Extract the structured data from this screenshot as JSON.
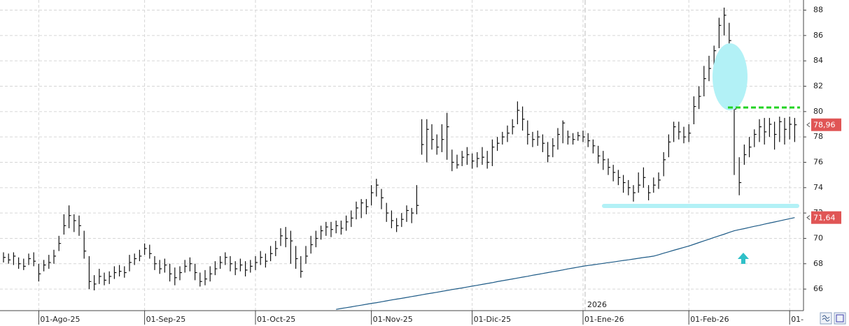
{
  "chart_data": {
    "type": "hlc",
    "ylim": [
      64.3,
      88.8
    ],
    "yticks": [
      66,
      68,
      70,
      72,
      74,
      76,
      78,
      80,
      82,
      84,
      86,
      88
    ],
    "grid": true,
    "color": "#111111",
    "year_marker": "2026",
    "categories": [
      null,
      null,
      null,
      null,
      null,
      null,
      null,
      "01-Ago-25",
      null,
      null,
      null,
      null,
      null,
      null,
      null,
      null,
      null,
      null,
      null,
      null,
      null,
      null,
      null,
      null,
      null,
      null,
      null,
      null,
      "01-Sep-25",
      null,
      null,
      null,
      null,
      null,
      null,
      null,
      null,
      null,
      null,
      null,
      null,
      null,
      null,
      null,
      null,
      null,
      null,
      null,
      null,
      null,
      "01-Oct-25",
      null,
      null,
      null,
      null,
      null,
      null,
      null,
      null,
      null,
      null,
      null,
      null,
      null,
      null,
      null,
      null,
      null,
      null,
      null,
      null,
      null,
      null,
      "01-Nov-25",
      null,
      null,
      null,
      null,
      null,
      null,
      null,
      null,
      null,
      null,
      null,
      null,
      null,
      null,
      null,
      null,
      null,
      null,
      null,
      "01-Dic-25",
      null,
      null,
      null,
      null,
      null,
      null,
      null,
      null,
      null,
      null,
      null,
      null,
      null,
      null,
      null,
      null,
      null,
      null,
      null,
      null,
      null,
      "01-Ene-26",
      null,
      null,
      null,
      null,
      null,
      null,
      null,
      null,
      null,
      null,
      null,
      null,
      null,
      null,
      null,
      null,
      null,
      null,
      null,
      null,
      "01-Feb-26",
      null,
      null,
      null,
      null,
      null,
      null,
      null,
      null,
      null,
      null,
      null,
      null,
      null,
      null,
      null,
      null,
      null,
      null,
      null,
      "01-",
      null
    ],
    "close": [
      68.5,
      68.3,
      68.6,
      68.0,
      67.8,
      68.4,
      68.2,
      67.2,
      67.9,
      68.1,
      68.6,
      69.6,
      71.0,
      71.8,
      71.4,
      71.0,
      69.0,
      66.6,
      66.4,
      67.0,
      66.7,
      67.0,
      67.3,
      67.4,
      67.3,
      68.1,
      68.4,
      68.6,
      69.2,
      68.8,
      68.0,
      67.6,
      67.9,
      67.2,
      66.9,
      67.3,
      67.8,
      68.0,
      67.3,
      66.6,
      66.8,
      67.2,
      67.6,
      68.1,
      68.5,
      68.0,
      67.6,
      67.9,
      67.5,
      67.8,
      68.1,
      68.5,
      68.2,
      68.8,
      69.2,
      70.2,
      70.0,
      69.8,
      68.4,
      67.4,
      68.6,
      69.5,
      70.0,
      70.6,
      70.9,
      70.7,
      71.0,
      70.8,
      71.3,
      71.6,
      72.4,
      72.8,
      72.5,
      73.6,
      74.2,
      73.2,
      72.0,
      71.4,
      71.0,
      71.5,
      72.2,
      72.0,
      72.6,
      77.4,
      78.6,
      77.8,
      77.2,
      77.8,
      78.8,
      76.0,
      75.8,
      76.4,
      76.6,
      76.1,
      76.3,
      76.4,
      76.0,
      77.2,
      77.5,
      78.0,
      78.3,
      78.8,
      80.1,
      79.4,
      78.2,
      77.8,
      78.0,
      77.5,
      76.5,
      77.3,
      78.2,
      79.1,
      78.0,
      77.8,
      78.1,
      78.0,
      77.7,
      77.3,
      76.5,
      76.2,
      75.6,
      75.2,
      74.8,
      74.4,
      74.0,
      73.6,
      74.2,
      74.8,
      73.6,
      74.2,
      74.6,
      76.2,
      77.6,
      78.8,
      78.4,
      78.0,
      78.3,
      80.4,
      81.2,
      82.6,
      83.4,
      84.8,
      86.8,
      87.6,
      85.6,
      80.2,
      74.4,
      76.6,
      77.2,
      78.2,
      78.8,
      78.4,
      79.0,
      78.2,
      79.2,
      78.6,
      79.0,
      78.96
    ],
    "high": [
      68.9,
      68.8,
      68.9,
      68.5,
      68.4,
      68.8,
      68.9,
      68.0,
      68.3,
      68.7,
      69.1,
      70.2,
      71.9,
      72.6,
      71.9,
      71.8,
      70.6,
      68.6,
      67.1,
      67.6,
      67.3,
      67.4,
      67.8,
      67.9,
      67.8,
      68.7,
      68.8,
      69.1,
      69.6,
      69.5,
      68.6,
      68.3,
      68.4,
      68.0,
      67.7,
      67.8,
      68.3,
      68.5,
      68.0,
      67.3,
      67.5,
      67.8,
      68.2,
      68.6,
      68.9,
      68.6,
      68.2,
      68.4,
      68.2,
      68.3,
      68.6,
      69.0,
      68.8,
      69.4,
      69.8,
      70.8,
      70.9,
      70.6,
      69.4,
      68.6,
      69.4,
      70.2,
      70.6,
      71.0,
      71.3,
      71.3,
      71.4,
      71.4,
      71.8,
      72.2,
      72.9,
      73.1,
      73.1,
      74.2,
      74.7,
      73.9,
      72.8,
      72.2,
      71.6,
      72.0,
      72.6,
      72.4,
      74.2,
      79.4,
      79.4,
      79.0,
      78.2,
      79.0,
      79.9,
      77.0,
      76.6,
      76.9,
      77.2,
      76.7,
      76.8,
      77.2,
      76.9,
      77.8,
      78.0,
      78.4,
      78.9,
      79.4,
      80.8,
      80.4,
      79.3,
      78.4,
      78.5,
      78.2,
      77.6,
      77.9,
      78.7,
      79.3,
      78.5,
      78.3,
      78.4,
      78.5,
      78.3,
      77.8,
      77.3,
      76.9,
      76.3,
      75.8,
      75.4,
      75.0,
      74.6,
      74.2,
      75.2,
      75.6,
      74.2,
      74.8,
      75.2,
      76.8,
      78.2,
      79.2,
      79.2,
      78.8,
      79.0,
      81.2,
      82.0,
      83.6,
      84.4,
      85.2,
      87.4,
      88.2,
      87.0,
      80.4,
      76.4,
      77.4,
      78.0,
      78.6,
      79.4,
      79.5,
      79.5,
      79.2,
      79.6,
      79.5,
      79.6,
      79.5
    ],
    "low": [
      68.1,
      68.0,
      67.9,
      67.6,
      67.5,
      67.9,
      67.8,
      66.6,
      67.4,
      67.6,
      68.0,
      69.0,
      70.3,
      70.8,
      70.5,
      70.2,
      68.4,
      66.0,
      65.9,
      66.4,
      66.3,
      66.4,
      66.8,
      67.0,
      66.9,
      67.4,
      67.9,
      68.2,
      68.7,
      68.4,
      67.5,
      67.2,
      67.3,
      66.6,
      66.3,
      66.7,
      67.3,
      67.4,
      66.7,
      66.2,
      66.3,
      66.6,
      67.1,
      67.6,
      67.9,
      67.4,
      67.1,
      67.4,
      67.0,
      67.3,
      67.5,
      67.9,
      67.7,
      68.2,
      68.6,
      69.4,
      69.3,
      68.0,
      67.6,
      66.9,
      68.0,
      68.8,
      69.3,
      69.9,
      70.2,
      70.1,
      70.4,
      70.3,
      70.6,
      70.9,
      71.5,
      71.6,
      71.9,
      72.6,
      73.3,
      72.3,
      71.3,
      70.8,
      70.5,
      70.9,
      71.3,
      71.2,
      71.9,
      76.6,
      76.0,
      77.0,
      76.6,
      76.8,
      76.2,
      75.3,
      75.5,
      75.7,
      75.8,
      75.5,
      75.6,
      75.8,
      75.5,
      75.7,
      76.9,
      77.4,
      77.6,
      78.2,
      79.0,
      78.5,
      77.4,
      77.2,
      77.3,
      76.8,
      76.0,
      76.4,
      77.0,
      77.5,
      77.4,
      77.4,
      77.7,
      77.6,
      77.2,
      76.7,
      75.9,
      75.4,
      75.0,
      74.5,
      74.2,
      73.6,
      73.4,
      72.9,
      73.6,
      74.0,
      73.0,
      73.6,
      73.9,
      74.9,
      76.4,
      77.6,
      77.8,
      77.5,
      77.6,
      79.0,
      80.2,
      81.2,
      82.4,
      82.6,
      85.0,
      86.0,
      85.0,
      75.0,
      73.4,
      75.8,
      76.4,
      77.2,
      77.6,
      77.4,
      78.0,
      77.0,
      77.6,
      77.4,
      77.8,
      77.6
    ],
    "overlay": {
      "color": "#1d5a86",
      "values": [
        null,
        null,
        null,
        null,
        null,
        null,
        null,
        null,
        null,
        null,
        null,
        null,
        null,
        null,
        null,
        null,
        null,
        null,
        null,
        null,
        null,
        null,
        null,
        null,
        null,
        null,
        null,
        null,
        null,
        null,
        null,
        null,
        null,
        null,
        null,
        null,
        null,
        null,
        null,
        null,
        null,
        null,
        null,
        null,
        null,
        null,
        null,
        null,
        null,
        null,
        null,
        null,
        null,
        null,
        null,
        null,
        null,
        null,
        null,
        null,
        null,
        null,
        null,
        null,
        null,
        null,
        64.4,
        64.47,
        64.53,
        64.6,
        64.67,
        64.73,
        64.8,
        64.87,
        64.93,
        65.0,
        65.07,
        65.14,
        65.21,
        65.27,
        65.34,
        65.41,
        65.48,
        65.55,
        65.62,
        65.68,
        65.75,
        65.82,
        65.89,
        65.96,
        66.03,
        66.09,
        66.16,
        66.23,
        66.3,
        66.37,
        66.44,
        66.51,
        66.59,
        66.66,
        66.73,
        66.8,
        66.87,
        66.94,
        67.01,
        67.09,
        67.16,
        67.23,
        67.3,
        67.37,
        67.44,
        67.51,
        67.59,
        67.66,
        67.73,
        67.8,
        67.86,
        67.91,
        67.97,
        68.03,
        68.09,
        68.14,
        68.2,
        68.26,
        68.31,
        68.37,
        68.43,
        68.49,
        68.54,
        68.6,
        68.71,
        68.83,
        68.94,
        69.06,
        69.17,
        69.29,
        69.4,
        69.53,
        69.67,
        69.8,
        69.93,
        70.07,
        70.2,
        70.33,
        70.47,
        70.6,
        70.69,
        70.77,
        70.86,
        70.95,
        71.03,
        71.12,
        71.21,
        71.29,
        71.38,
        71.47,
        71.55,
        71.64
      ]
    },
    "price_labels": [
      {
        "value": 78.96,
        "label": "78,96",
        "color": "#e05555"
      },
      {
        "value": 71.64,
        "label": "71,64",
        "color": "#e05555"
      }
    ]
  }
}
